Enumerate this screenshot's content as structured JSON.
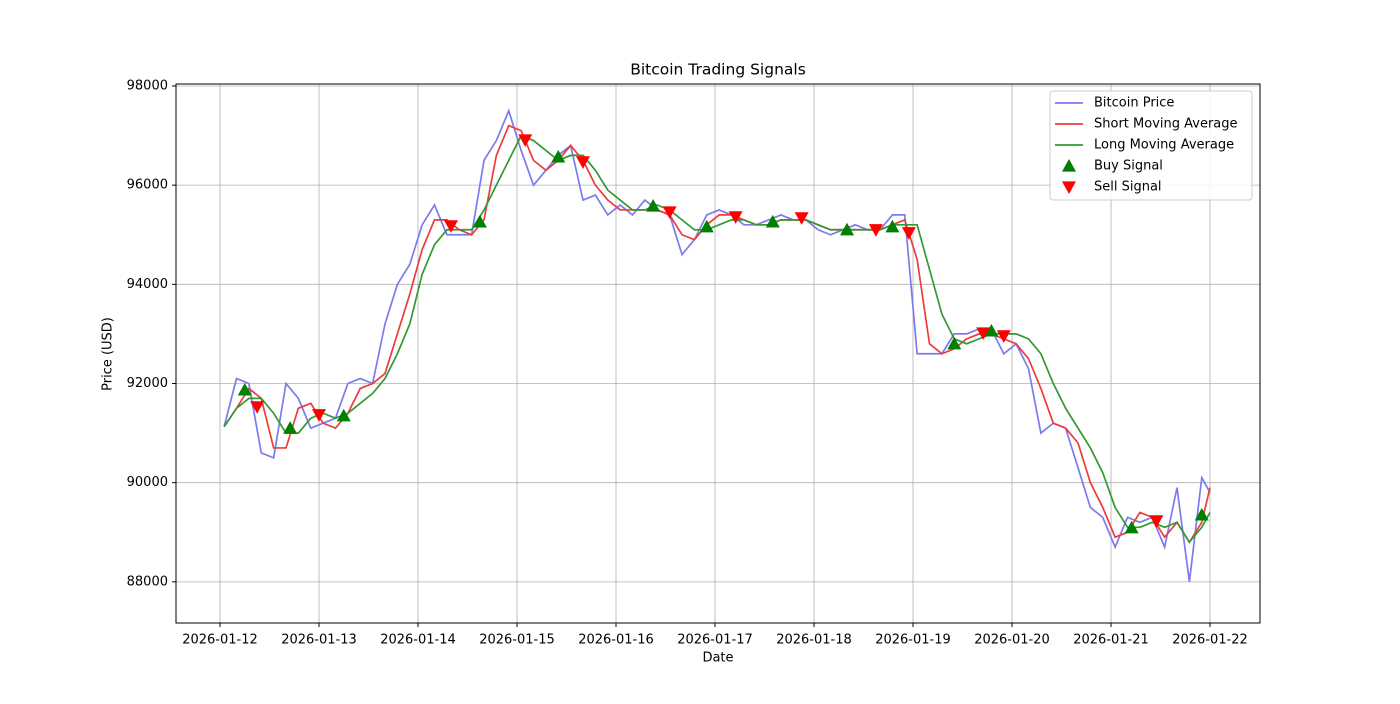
{
  "chart_data": {
    "type": "line",
    "title": "Bitcoin Trading Signals",
    "xlabel": "Date",
    "ylabel": "Price (USD)",
    "x": [
      "2026-01-12 01:00",
      "2026-01-12 04:00",
      "2026-01-12 07:00",
      "2026-01-12 10:00",
      "2026-01-12 13:00",
      "2026-01-12 16:00",
      "2026-01-12 19:00",
      "2026-01-12 22:00",
      "2026-01-13 01:00",
      "2026-01-13 04:00",
      "2026-01-13 07:00",
      "2026-01-13 10:00",
      "2026-01-13 13:00",
      "2026-01-13 16:00",
      "2026-01-13 19:00",
      "2026-01-13 22:00",
      "2026-01-14 01:00",
      "2026-01-14 04:00",
      "2026-01-14 07:00",
      "2026-01-14 10:00",
      "2026-01-14 13:00",
      "2026-01-14 16:00",
      "2026-01-14 19:00",
      "2026-01-14 22:00",
      "2026-01-15 01:00",
      "2026-01-15 04:00",
      "2026-01-15 07:00",
      "2026-01-15 10:00",
      "2026-01-15 13:00",
      "2026-01-15 16:00",
      "2026-01-15 19:00",
      "2026-01-15 22:00",
      "2026-01-16 01:00",
      "2026-01-16 04:00",
      "2026-01-16 07:00",
      "2026-01-16 10:00",
      "2026-01-16 13:00",
      "2026-01-16 16:00",
      "2026-01-16 19:00",
      "2026-01-16 22:00",
      "2026-01-17 01:00",
      "2026-01-17 04:00",
      "2026-01-17 07:00",
      "2026-01-17 10:00",
      "2026-01-17 13:00",
      "2026-01-17 16:00",
      "2026-01-17 19:00",
      "2026-01-17 22:00",
      "2026-01-18 01:00",
      "2026-01-18 04:00",
      "2026-01-18 07:00",
      "2026-01-18 10:00",
      "2026-01-18 13:00",
      "2026-01-18 16:00",
      "2026-01-18 19:00",
      "2026-01-18 22:00",
      "2026-01-19 01:00",
      "2026-01-19 04:00",
      "2026-01-19 07:00",
      "2026-01-19 10:00",
      "2026-01-19 13:00",
      "2026-01-19 16:00",
      "2026-01-19 19:00",
      "2026-01-19 22:00",
      "2026-01-20 01:00",
      "2026-01-20 04:00",
      "2026-01-20 07:00",
      "2026-01-20 10:00",
      "2026-01-20 13:00",
      "2026-01-20 16:00",
      "2026-01-20 19:00",
      "2026-01-20 22:00",
      "2026-01-21 01:00",
      "2026-01-21 04:00",
      "2026-01-21 07:00",
      "2026-01-21 10:00",
      "2026-01-21 13:00",
      "2026-01-21 16:00",
      "2026-01-21 19:00",
      "2026-01-21 22:00",
      "2026-01-22 00:00"
    ],
    "series": [
      {
        "name": "Bitcoin Price",
        "type": "line",
        "color": "#7b7bef",
        "values": [
          91130,
          92100,
          92000,
          90600,
          90500,
          92000,
          91700,
          91100,
          91200,
          91300,
          92000,
          92100,
          92000,
          93200,
          94000,
          94400,
          95200,
          95600,
          95000,
          95000,
          95000,
          96500,
          96900,
          97500,
          96700,
          96000,
          96300,
          96600,
          96800,
          95700,
          95800,
          95400,
          95600,
          95400,
          95700,
          95500,
          95400,
          94600,
          94900,
          95400,
          95500,
          95400,
          95200,
          95200,
          95300,
          95400,
          95300,
          95300,
          95100,
          95000,
          95100,
          95200,
          95100,
          95100,
          95400,
          95400,
          92600,
          92600,
          92600,
          93000,
          93000,
          93100,
          93100,
          92600,
          92800,
          92300,
          91000,
          91200,
          91100,
          90300,
          89500,
          89300,
          88700,
          89300,
          89200,
          89300,
          88700,
          89900,
          88000,
          90100,
          89800
        ]
      },
      {
        "name": "Short Moving Average",
        "type": "line",
        "color": "#ee3b3b",
        "values": [
          91130,
          91500,
          91900,
          91700,
          90700,
          90700,
          91500,
          91600,
          91200,
          91100,
          91400,
          91900,
          92000,
          92200,
          93000,
          93800,
          94700,
          95300,
          95300,
          95100,
          95000,
          95300,
          96600,
          97200,
          97100,
          96500,
          96300,
          96500,
          96800,
          96500,
          96000,
          95700,
          95500,
          95500,
          95500,
          95500,
          95400,
          95000,
          94900,
          95200,
          95400,
          95400,
          95300,
          95200,
          95200,
          95300,
          95300,
          95300,
          95200,
          95100,
          95100,
          95100,
          95100,
          95100,
          95200,
          95300,
          94500,
          92800,
          92600,
          92700,
          92900,
          93000,
          93000,
          92900,
          92800,
          92500,
          91900,
          91200,
          91100,
          90800,
          90000,
          89500,
          88900,
          89000,
          89400,
          89300,
          88900,
          89200,
          88800,
          89200,
          89900
        ]
      },
      {
        "name": "Long Moving Average",
        "type": "line",
        "color": "#339933",
        "values": [
          91130,
          91500,
          91700,
          91700,
          91400,
          91000,
          91000,
          91300,
          91400,
          91300,
          91400,
          91600,
          91800,
          92100,
          92600,
          93200,
          94200,
          94800,
          95100,
          95100,
          95100,
          95500,
          96000,
          96500,
          97000,
          96900,
          96700,
          96500,
          96600,
          96600,
          96300,
          95900,
          95700,
          95500,
          95500,
          95600,
          95500,
          95300,
          95100,
          95100,
          95200,
          95300,
          95300,
          95200,
          95200,
          95300,
          95300,
          95300,
          95200,
          95100,
          95100,
          95100,
          95100,
          95100,
          95200,
          95200,
          95200,
          94300,
          93400,
          92900,
          92800,
          92900,
          93000,
          93000,
          93000,
          92900,
          92600,
          92000,
          91500,
          91100,
          90700,
          90200,
          89500,
          89100,
          89100,
          89200,
          89100,
          89200,
          88800,
          89100,
          89400
        ]
      },
      {
        "name": "Buy Signal",
        "type": "scatter",
        "marker": "triangle-up",
        "color": "#008000",
        "x": [
          "2026-01-12 06:00",
          "2026-01-12 17:00",
          "2026-01-13 06:00",
          "2026-01-14 15:00",
          "2026-01-15 10:00",
          "2026-01-16 09:00",
          "2026-01-16 22:00",
          "2026-01-17 14:00",
          "2026-01-18 08:00",
          "2026-01-18 19:00",
          "2026-01-19 10:00",
          "2026-01-19 19:00",
          "2026-01-21 05:00",
          "2026-01-21 22:00"
        ],
        "values": [
          91870,
          91100,
          91350,
          95260,
          96570,
          95580,
          95160,
          95260,
          95100,
          95160,
          92800,
          93060,
          89090,
          89350
        ]
      },
      {
        "name": "Sell Signal",
        "type": "scatter",
        "marker": "triangle-down",
        "color": "#ff0000",
        "x": [
          "2026-01-12 09:00",
          "2026-01-13 00:00",
          "2026-01-14 08:00",
          "2026-01-15 02:00",
          "2026-01-15 16:00",
          "2026-01-16 13:00",
          "2026-01-17 05:00",
          "2026-01-17 21:00",
          "2026-01-18 15:00",
          "2026-01-18 23:00",
          "2026-01-19 17:00",
          "2026-01-19 22:00",
          "2026-01-21 11:00"
        ],
        "values": [
          91530,
          91370,
          95180,
          96910,
          96470,
          95460,
          95360,
          95340,
          95100,
          95040,
          93020,
          92960,
          89230
        ]
      }
    ],
    "xlim": [
      "2026-01-11 13:20",
      "2026-01-22 12:07"
    ],
    "xticks": [
      "2026-01-12",
      "2026-01-13",
      "2026-01-14",
      "2026-01-15",
      "2026-01-16",
      "2026-01-17",
      "2026-01-18",
      "2026-01-19",
      "2026-01-20",
      "2026-01-21",
      "2026-01-22"
    ],
    "ylim": [
      87170,
      98040
    ],
    "yticks": [
      88000,
      90000,
      92000,
      94000,
      96000,
      98000
    ],
    "grid": true,
    "legend": "upper right"
  }
}
